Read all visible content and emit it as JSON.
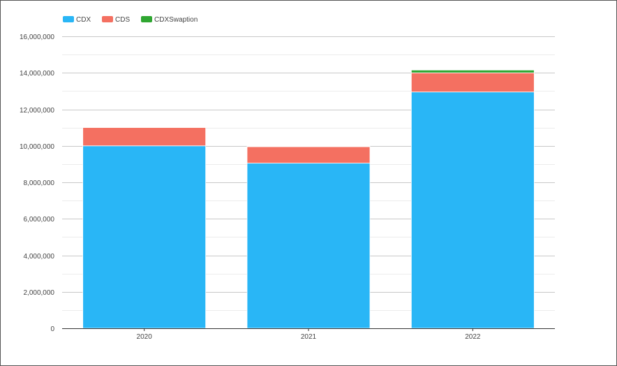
{
  "chart_data": {
    "type": "bar",
    "stacked": true,
    "categories": [
      "2020",
      "2021",
      "2022"
    ],
    "series": [
      {
        "name": "CDX",
        "color": "#29B6F6",
        "values": [
          10000000,
          9050000,
          12950000
        ]
      },
      {
        "name": "CDS",
        "color": "#F47061",
        "values": [
          1000000,
          900000,
          1050000
        ]
      },
      {
        "name": "CDXSwaption",
        "color": "#2FA631",
        "values": [
          0,
          30000,
          150000
        ]
      }
    ],
    "ylim": [
      0,
      16000000
    ],
    "yticks": [
      0,
      2000000,
      4000000,
      6000000,
      8000000,
      10000000,
      12000000,
      14000000,
      16000000
    ],
    "ytick_labels": [
      "0",
      "2,000,000",
      "4,000,000",
      "6,000,000",
      "8,000,000",
      "10,000,000",
      "12,000,000",
      "14,000,000",
      "16,000,000"
    ],
    "grid": true,
    "legend_position": "top-left"
  }
}
